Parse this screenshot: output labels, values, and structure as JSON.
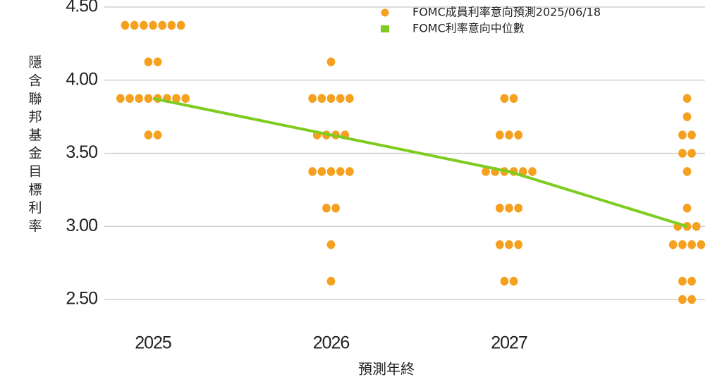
{
  "chart_data": {
    "type": "dot-plot",
    "y_label": "隱含聯邦基金目標利率",
    "x_label": "預測年終",
    "categories": [
      "2025",
      "2026",
      "2027",
      null
    ],
    "ylim": [
      2.5,
      4.5
    ],
    "yticks": [
      {
        "value": 2.5,
        "label": "2.50"
      },
      {
        "value": 3,
        "label": "3.00"
      },
      {
        "value": 3.5,
        "label": "3.50"
      },
      {
        "value": 4,
        "label": "4.00"
      },
      {
        "value": 4.5,
        "label": "4.50"
      }
    ],
    "grid": true,
    "legend": "top-right",
    "series": [
      {
        "name": "FOMC成員利率意向預測2025/06/18",
        "color": "#f5a01e",
        "type": "dots",
        "values": [
          [
            4.375,
            4.375,
            4.375,
            4.375,
            4.375,
            4.375,
            4.375,
            4.125,
            4.125,
            3.875,
            3.875,
            3.875,
            3.875,
            3.875,
            3.875,
            3.875,
            3.875,
            3.625,
            3.625
          ],
          [
            4.125,
            3.875,
            3.875,
            3.875,
            3.875,
            3.875,
            3.625,
            3.625,
            3.625,
            3.625,
            3.375,
            3.375,
            3.375,
            3.375,
            3.375,
            3.125,
            3.125,
            2.875,
            2.625
          ],
          [
            3.875,
            3.875,
            3.625,
            3.625,
            3.625,
            3.375,
            3.375,
            3.375,
            3.375,
            3.375,
            3.375,
            3.125,
            3.125,
            3.125,
            2.875,
            2.875,
            2.875,
            2.625,
            2.625
          ],
          [
            3.875,
            3.75,
            3.625,
            3.625,
            3.5,
            3.5,
            3.375,
            3.125,
            3,
            3,
            3,
            2.875,
            2.875,
            2.875,
            2.875,
            2.625,
            2.625,
            2.5,
            2.5
          ]
        ]
      },
      {
        "name": "FOMC利率意向中位數",
        "color": "#7dcc1f",
        "type": "line",
        "values": [
          3.875,
          3.625,
          3.375,
          3
        ]
      }
    ]
  }
}
